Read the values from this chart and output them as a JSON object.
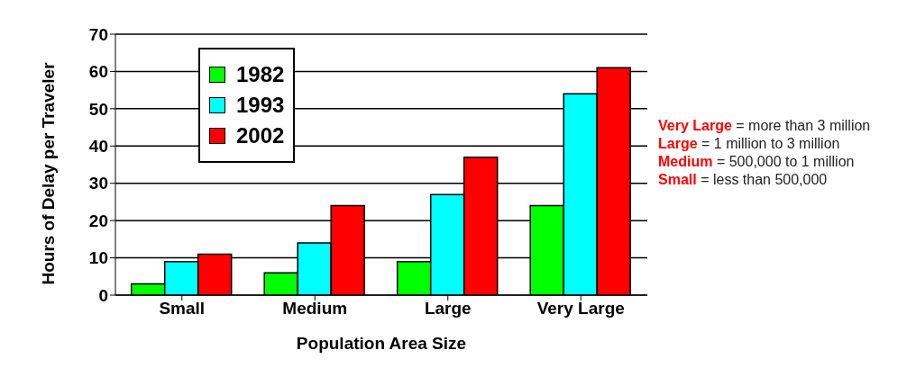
{
  "chart_data": {
    "type": "bar",
    "xlabel": "Population Area Size",
    "ylabel": "Hours of Delay per Traveler",
    "categories": [
      "Small",
      "Medium",
      "Large",
      "Very Large"
    ],
    "series": [
      {
        "name": "1982",
        "color": "#00ff00",
        "values": [
          3,
          6,
          9,
          24
        ]
      },
      {
        "name": "1993",
        "color": "#00ffff",
        "values": [
          9,
          14,
          27,
          54
        ]
      },
      {
        "name": "2002",
        "color": "#ff0000",
        "values": [
          11,
          24,
          37,
          61
        ]
      }
    ],
    "ylim": [
      0,
      70
    ],
    "yticks": [
      0,
      10,
      20,
      30,
      40,
      50,
      60,
      70
    ],
    "grid": "y",
    "legend": "top left",
    "annotations": [
      "Very Large = more than 3 million",
      "Large = 1 million to 3 million",
      "Medium = 500,000 to 1 million",
      "Small = less than 500,000"
    ]
  }
}
